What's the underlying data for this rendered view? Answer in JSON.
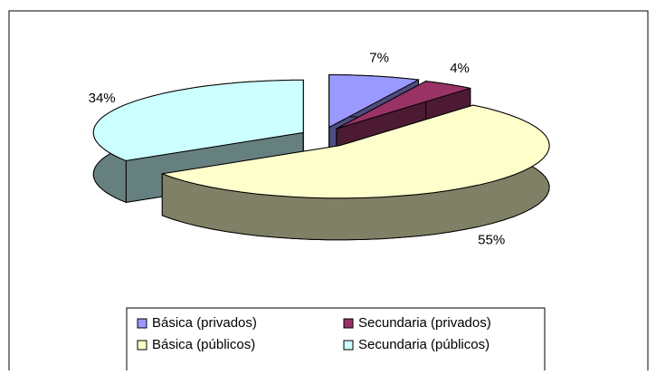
{
  "chart_data": {
    "type": "pie3d",
    "categories": [
      "Básica (privados)",
      "Secundaria (privados)",
      "Básica (públicos)",
      "Secundaria (públicos)"
    ],
    "values": [
      7,
      4,
      55,
      34
    ],
    "value_labels": [
      "7%",
      "4%",
      "55%",
      "34%"
    ],
    "colors": [
      "#9999ff",
      "#993366",
      "#ffffcc",
      "#ccffff"
    ],
    "legend": "bottom"
  }
}
